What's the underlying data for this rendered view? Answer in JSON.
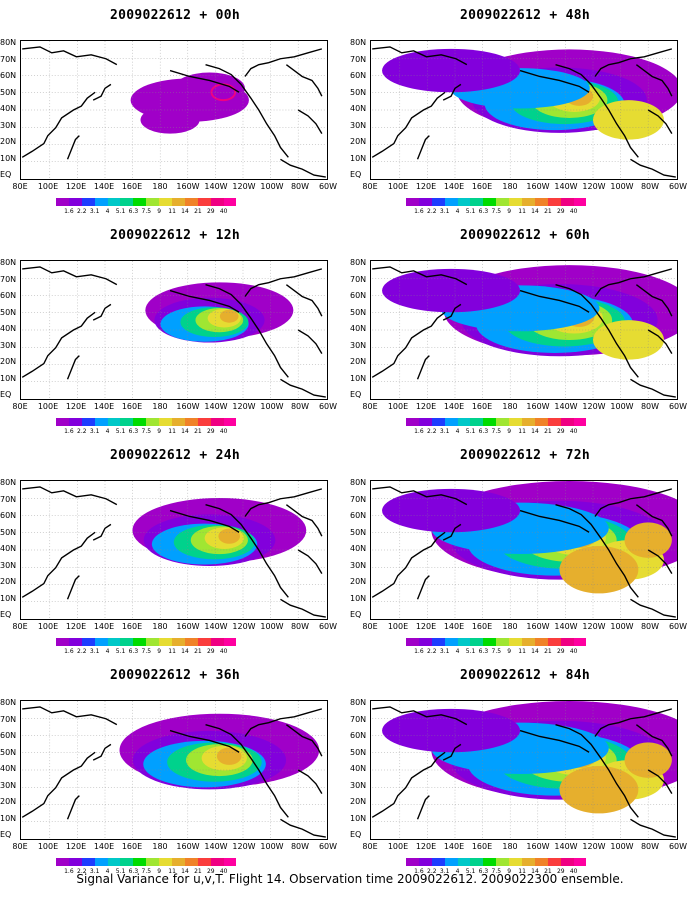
{
  "caption": "Signal Variance for u,v,T. Flight 14. Observation time 2009022612. 2009022300 ensemble.",
  "panels": [
    {
      "title": "2009022612 + 00h",
      "forecast_hour": 0
    },
    {
      "title": "2009022612 + 48h",
      "forecast_hour": 48
    },
    {
      "title": "2009022612 + 12h",
      "forecast_hour": 12
    },
    {
      "title": "2009022612 + 60h",
      "forecast_hour": 60
    },
    {
      "title": "2009022612 + 24h",
      "forecast_hour": 24
    },
    {
      "title": "2009022612 + 72h",
      "forecast_hour": 72
    },
    {
      "title": "2009022612 + 36h",
      "forecast_hour": 36
    },
    {
      "title": "2009022612 + 84h",
      "forecast_hour": 84
    }
  ],
  "lat_labels": [
    "80N",
    "70N",
    "60N",
    "50N",
    "40N",
    "30N",
    "20N",
    "10N",
    "EQ"
  ],
  "lon_labels": [
    "80E",
    "100E",
    "120E",
    "140E",
    "160E",
    "180",
    "160W",
    "140W",
    "120W",
    "100W",
    "80W",
    "60W"
  ],
  "colorbar": {
    "labels": [
      "1.6",
      "2.2",
      "3.1",
      "4",
      "5.1",
      "6.3",
      "7.5",
      "9",
      "11",
      "14",
      "21",
      "29",
      "40"
    ],
    "colors": [
      "#a000c8",
      "#8200dc",
      "#1e3cff",
      "#00a0ff",
      "#00c8c8",
      "#00d28c",
      "#00dc00",
      "#a0e632",
      "#e6dc32",
      "#e6af2d",
      "#f08228",
      "#fa3c3c",
      "#f00082",
      "#ff00a0"
    ]
  }
}
